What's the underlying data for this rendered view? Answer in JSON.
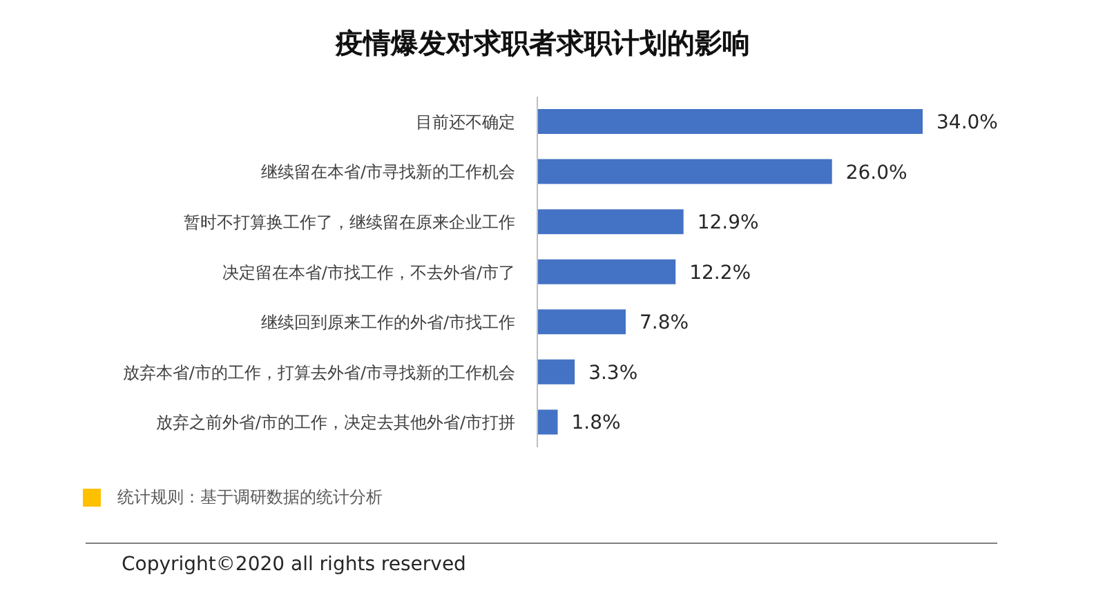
{
  "chart_data": {
    "type": "bar",
    "orientation": "horizontal",
    "title": "疫情爆发对求职者求职计划的影响",
    "categories": [
      "目前还不确定",
      "继续留在本省/市寻找新的工作机会",
      "暂时不打算换工作了，继续留在原来企业工作",
      "决定留在本省/市找工作，不去外省/市了",
      "继续回到原来工作的外省/市找工作",
      "放弃本省/市的工作，打算去外省/市寻找新的工作机会",
      "放弃之前外省/市的工作，决定去其他外省/市打拼"
    ],
    "values": [
      34.0,
      26.0,
      12.9,
      12.2,
      7.8,
      3.3,
      1.8
    ],
    "value_labels": [
      "34.0%",
      "26.0%",
      "12.9%",
      "12.2%",
      "7.8%",
      "3.3%",
      "1.8%"
    ],
    "color": "#4472c4",
    "tick_labels": "y",
    "annotations": [
      "统计规则：基于调研数据的统计分析",
      "Copyright©2020 all rights reserved"
    ]
  }
}
